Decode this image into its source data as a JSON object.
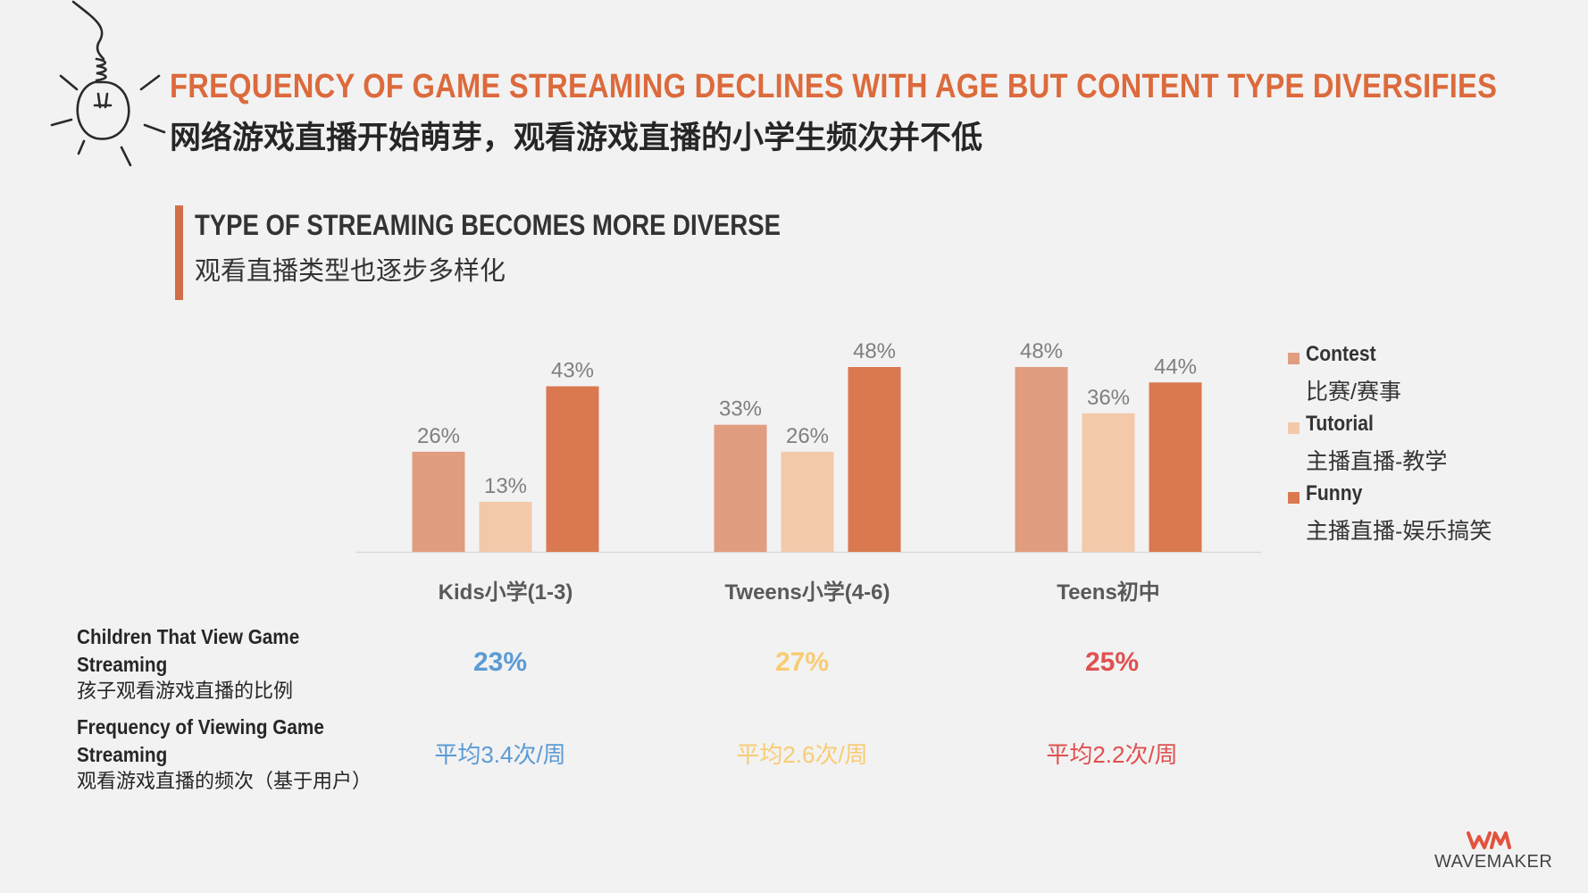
{
  "header": {
    "title_en": "FREQUENCY OF GAME STREAMING DECLINES WITH AGE BUT CONTENT TYPE DIVERSIFIES",
    "title_cn": "网络游戏直播开始萌芽，观看游戏直播的小学生频次并不低"
  },
  "section": {
    "title_en": "TYPE OF STREAMING BECOMES MORE DIVERSE",
    "title_cn": "观看直播类型也逐步多样化"
  },
  "chart_data": {
    "type": "bar",
    "categories": [
      "Kids小学(1-3)",
      "Tweens小学(4-6)",
      "Teens初中"
    ],
    "series": [
      {
        "name": "Contest",
        "name_cn": "比赛/赛事",
        "color": "#e09d80",
        "values": [
          26,
          33,
          48
        ],
        "labels": [
          "26%",
          "33%",
          "48%"
        ]
      },
      {
        "name": "Tutorial",
        "name_cn": "主播直播-教学",
        "color": "#f3c9aa",
        "values": [
          13,
          26,
          36
        ],
        "labels": [
          "13%",
          "26%",
          "36%"
        ]
      },
      {
        "name": "Funny",
        "name_cn": "主播直播-娱乐搞笑",
        "color": "#da7850",
        "values": [
          43,
          48,
          44
        ],
        "labels": [
          "43%",
          "48%",
          "44%"
        ]
      }
    ],
    "ylim": [
      0,
      48
    ],
    "grid": false,
    "legend": "right"
  },
  "rows": {
    "viewing": {
      "label_en": "Children That View Game Streaming",
      "label_cn": "孩子观看游戏直播的比例",
      "values": [
        "23%",
        "27%",
        "25%"
      ]
    },
    "frequency": {
      "label_en": "Frequency of Viewing Game Streaming",
      "label_cn": "观看游戏直播的频次（基于用户）",
      "values": [
        "平均3.4次/周",
        "平均2.6次/周",
        "平均2.2次/周"
      ]
    }
  },
  "group_colors": [
    "#5b9bd5",
    "#f8cc73",
    "#e05050"
  ],
  "logo": {
    "text": "WAVEMAKER",
    "mark": "WM"
  }
}
